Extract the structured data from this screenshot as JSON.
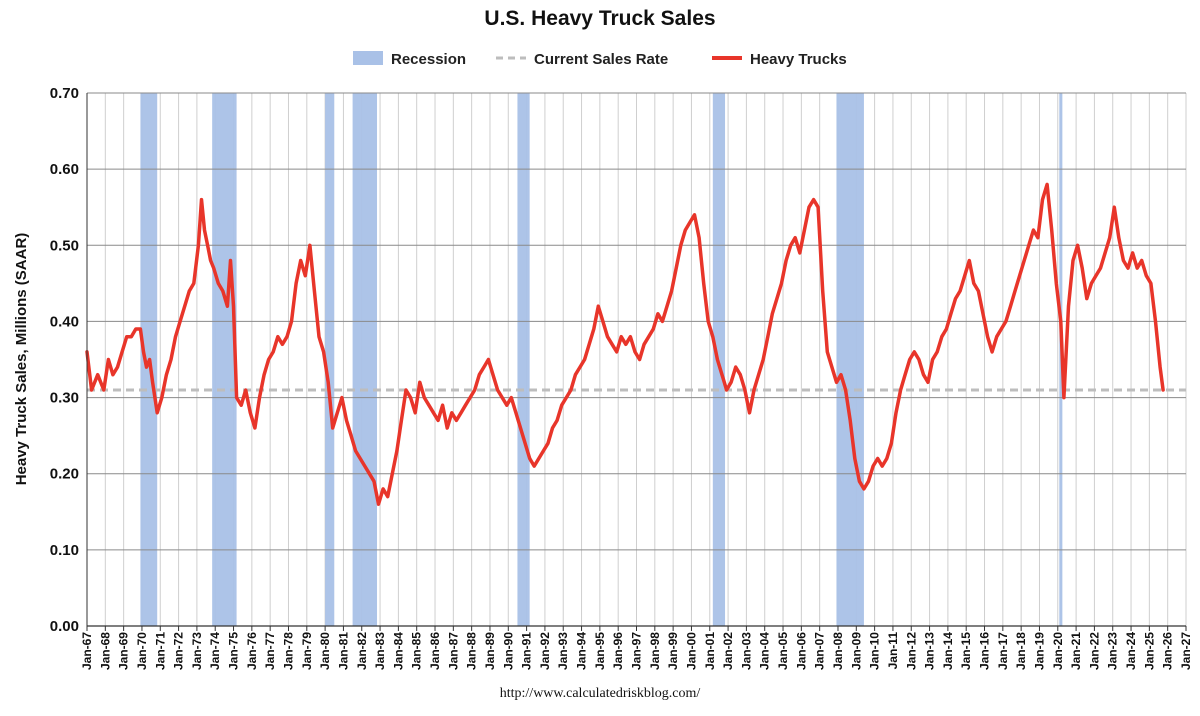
{
  "chart_data": {
    "type": "line",
    "title": "U.S. Heavy Truck Sales",
    "ylabel": "Heavy Truck Sales, Millions (SAAR)",
    "xlabel": "",
    "source": "http://www.calculatedriskblog.com/",
    "ylim": [
      0,
      0.7
    ],
    "xlim": [
      "1967-01",
      "2027-01"
    ],
    "yticks": [
      "0.00",
      "0.10",
      "0.20",
      "0.30",
      "0.40",
      "0.50",
      "0.60",
      "0.70"
    ],
    "xticks": [
      "Jan-67",
      "Jan-68",
      "Jan-69",
      "Jan-70",
      "Jan-71",
      "Jan-72",
      "Jan-73",
      "Jan-74",
      "Jan-75",
      "Jan-76",
      "Jan-77",
      "Jan-78",
      "Jan-79",
      "Jan-80",
      "Jan-81",
      "Jan-82",
      "Jan-83",
      "Jan-84",
      "Jan-85",
      "Jan-86",
      "Jan-87",
      "Jan-88",
      "Jan-89",
      "Jan-90",
      "Jan-91",
      "Jan-92",
      "Jan-93",
      "Jan-94",
      "Jan-95",
      "Jan-96",
      "Jan-97",
      "Jan-98",
      "Jan-99",
      "Jan-00",
      "Jan-01",
      "Jan-02",
      "Jan-03",
      "Jan-04",
      "Jan-05",
      "Jan-06",
      "Jan-07",
      "Jan-08",
      "Jan-09",
      "Jan-10",
      "Jan-11",
      "Jan-12",
      "Jan-13",
      "Jan-14",
      "Jan-15",
      "Jan-16",
      "Jan-17",
      "Jan-18",
      "Jan-19",
      "Jan-20",
      "Jan-21",
      "Jan-22",
      "Jan-23",
      "Jan-24",
      "Jan-25",
      "Jan-26",
      "Jan-27"
    ],
    "grid": true,
    "legend_position": "top-center",
    "legend": [
      {
        "label": "Recession",
        "kind": "box",
        "color": "#a9c1e7"
      },
      {
        "label": "Current Sales Rate",
        "kind": "dashed",
        "color": "#bdbdbd"
      },
      {
        "label": "Heavy Trucks",
        "kind": "line",
        "color": "#e8352a"
      }
    ],
    "recessions": [
      [
        "1969-12",
        "1970-11"
      ],
      [
        "1973-11",
        "1975-03"
      ],
      [
        "1980-01",
        "1980-07"
      ],
      [
        "1981-07",
        "1982-11"
      ],
      [
        "1990-07",
        "1991-03"
      ],
      [
        "2001-03",
        "2001-11"
      ],
      [
        "2007-12",
        "2009-06"
      ],
      [
        "2020-02",
        "2020-04"
      ]
    ],
    "current_rate": 0.31,
    "series": [
      {
        "name": "Heavy Trucks",
        "color": "#e8352a",
        "points": [
          [
            "1967-01",
            0.36
          ],
          [
            "1967-04",
            0.31
          ],
          [
            "1967-08",
            0.33
          ],
          [
            "1967-12",
            0.31
          ],
          [
            "1968-03",
            0.35
          ],
          [
            "1968-06",
            0.33
          ],
          [
            "1968-09",
            0.34
          ],
          [
            "1968-12",
            0.36
          ],
          [
            "1969-03",
            0.38
          ],
          [
            "1969-06",
            0.38
          ],
          [
            "1969-09",
            0.39
          ],
          [
            "1969-12",
            0.39
          ],
          [
            "1970-02",
            0.36
          ],
          [
            "1970-04",
            0.34
          ],
          [
            "1970-06",
            0.35
          ],
          [
            "1970-08",
            0.32
          ],
          [
            "1970-11",
            0.28
          ],
          [
            "1971-02",
            0.3
          ],
          [
            "1971-05",
            0.33
          ],
          [
            "1971-08",
            0.35
          ],
          [
            "1971-11",
            0.38
          ],
          [
            "1972-02",
            0.4
          ],
          [
            "1972-05",
            0.42
          ],
          [
            "1972-08",
            0.44
          ],
          [
            "1972-11",
            0.45
          ],
          [
            "1973-02",
            0.5
          ],
          [
            "1973-04",
            0.56
          ],
          [
            "1973-06",
            0.52
          ],
          [
            "1973-08",
            0.5
          ],
          [
            "1973-10",
            0.48
          ],
          [
            "1973-12",
            0.47
          ],
          [
            "1974-03",
            0.45
          ],
          [
            "1974-06",
            0.44
          ],
          [
            "1974-09",
            0.42
          ],
          [
            "1974-11",
            0.48
          ],
          [
            "1975-01",
            0.42
          ],
          [
            "1975-03",
            0.3
          ],
          [
            "1975-06",
            0.29
          ],
          [
            "1975-09",
            0.31
          ],
          [
            "1975-12",
            0.28
          ],
          [
            "1976-03",
            0.26
          ],
          [
            "1976-06",
            0.3
          ],
          [
            "1976-09",
            0.33
          ],
          [
            "1976-12",
            0.35
          ],
          [
            "1977-03",
            0.36
          ],
          [
            "1977-06",
            0.38
          ],
          [
            "1977-09",
            0.37
          ],
          [
            "1977-12",
            0.38
          ],
          [
            "1978-03",
            0.4
          ],
          [
            "1978-06",
            0.45
          ],
          [
            "1978-09",
            0.48
          ],
          [
            "1978-12",
            0.46
          ],
          [
            "1979-03",
            0.5
          ],
          [
            "1979-06",
            0.44
          ],
          [
            "1979-09",
            0.38
          ],
          [
            "1979-12",
            0.36
          ],
          [
            "1980-03",
            0.32
          ],
          [
            "1980-06",
            0.26
          ],
          [
            "1980-09",
            0.28
          ],
          [
            "1980-12",
            0.3
          ],
          [
            "1981-03",
            0.27
          ],
          [
            "1981-06",
            0.25
          ],
          [
            "1981-09",
            0.23
          ],
          [
            "1981-12",
            0.22
          ],
          [
            "1982-03",
            0.21
          ],
          [
            "1982-06",
            0.2
          ],
          [
            "1982-09",
            0.19
          ],
          [
            "1982-12",
            0.16
          ],
          [
            "1983-03",
            0.18
          ],
          [
            "1983-06",
            0.17
          ],
          [
            "1983-09",
            0.2
          ],
          [
            "1983-12",
            0.23
          ],
          [
            "1984-03",
            0.27
          ],
          [
            "1984-06",
            0.31
          ],
          [
            "1984-09",
            0.3
          ],
          [
            "1984-12",
            0.28
          ],
          [
            "1985-03",
            0.32
          ],
          [
            "1985-06",
            0.3
          ],
          [
            "1985-09",
            0.29
          ],
          [
            "1985-12",
            0.28
          ],
          [
            "1986-03",
            0.27
          ],
          [
            "1986-06",
            0.29
          ],
          [
            "1986-09",
            0.26
          ],
          [
            "1986-12",
            0.28
          ],
          [
            "1987-03",
            0.27
          ],
          [
            "1987-06",
            0.28
          ],
          [
            "1987-09",
            0.29
          ],
          [
            "1987-12",
            0.3
          ],
          [
            "1988-03",
            0.31
          ],
          [
            "1988-06",
            0.33
          ],
          [
            "1988-09",
            0.34
          ],
          [
            "1988-12",
            0.35
          ],
          [
            "1989-03",
            0.33
          ],
          [
            "1989-06",
            0.31
          ],
          [
            "1989-09",
            0.3
          ],
          [
            "1989-12",
            0.29
          ],
          [
            "1990-03",
            0.3
          ],
          [
            "1990-06",
            0.28
          ],
          [
            "1990-09",
            0.26
          ],
          [
            "1990-12",
            0.24
          ],
          [
            "1991-03",
            0.22
          ],
          [
            "1991-06",
            0.21
          ],
          [
            "1991-09",
            0.22
          ],
          [
            "1991-12",
            0.23
          ],
          [
            "1992-03",
            0.24
          ],
          [
            "1992-06",
            0.26
          ],
          [
            "1992-09",
            0.27
          ],
          [
            "1992-12",
            0.29
          ],
          [
            "1993-03",
            0.3
          ],
          [
            "1993-06",
            0.31
          ],
          [
            "1993-09",
            0.33
          ],
          [
            "1993-12",
            0.34
          ],
          [
            "1994-03",
            0.35
          ],
          [
            "1994-06",
            0.37
          ],
          [
            "1994-09",
            0.39
          ],
          [
            "1994-12",
            0.42
          ],
          [
            "1995-03",
            0.4
          ],
          [
            "1995-06",
            0.38
          ],
          [
            "1995-09",
            0.37
          ],
          [
            "1995-12",
            0.36
          ],
          [
            "1996-03",
            0.38
          ],
          [
            "1996-06",
            0.37
          ],
          [
            "1996-09",
            0.38
          ],
          [
            "1996-12",
            0.36
          ],
          [
            "1997-03",
            0.35
          ],
          [
            "1997-06",
            0.37
          ],
          [
            "1997-09",
            0.38
          ],
          [
            "1997-12",
            0.39
          ],
          [
            "1998-03",
            0.41
          ],
          [
            "1998-06",
            0.4
          ],
          [
            "1998-09",
            0.42
          ],
          [
            "1998-12",
            0.44
          ],
          [
            "1999-03",
            0.47
          ],
          [
            "1999-06",
            0.5
          ],
          [
            "1999-09",
            0.52
          ],
          [
            "1999-12",
            0.53
          ],
          [
            "2000-03",
            0.54
          ],
          [
            "2000-06",
            0.51
          ],
          [
            "2000-09",
            0.45
          ],
          [
            "2000-12",
            0.4
          ],
          [
            "2001-03",
            0.38
          ],
          [
            "2001-06",
            0.35
          ],
          [
            "2001-09",
            0.33
          ],
          [
            "2001-12",
            0.31
          ],
          [
            "2002-03",
            0.32
          ],
          [
            "2002-06",
            0.34
          ],
          [
            "2002-09",
            0.33
          ],
          [
            "2002-12",
            0.31
          ],
          [
            "2003-03",
            0.28
          ],
          [
            "2003-06",
            0.31
          ],
          [
            "2003-09",
            0.33
          ],
          [
            "2003-12",
            0.35
          ],
          [
            "2004-03",
            0.38
          ],
          [
            "2004-06",
            0.41
          ],
          [
            "2004-09",
            0.43
          ],
          [
            "2004-12",
            0.45
          ],
          [
            "2005-03",
            0.48
          ],
          [
            "2005-06",
            0.5
          ],
          [
            "2005-09",
            0.51
          ],
          [
            "2005-12",
            0.49
          ],
          [
            "2006-03",
            0.52
          ],
          [
            "2006-06",
            0.55
          ],
          [
            "2006-09",
            0.56
          ],
          [
            "2006-12",
            0.55
          ],
          [
            "2007-03",
            0.44
          ],
          [
            "2007-06",
            0.36
          ],
          [
            "2007-09",
            0.34
          ],
          [
            "2007-12",
            0.32
          ],
          [
            "2008-03",
            0.33
          ],
          [
            "2008-06",
            0.31
          ],
          [
            "2008-09",
            0.27
          ],
          [
            "2008-12",
            0.22
          ],
          [
            "2009-03",
            0.19
          ],
          [
            "2009-06",
            0.18
          ],
          [
            "2009-09",
            0.19
          ],
          [
            "2009-12",
            0.21
          ],
          [
            "2010-03",
            0.22
          ],
          [
            "2010-06",
            0.21
          ],
          [
            "2010-09",
            0.22
          ],
          [
            "2010-12",
            0.24
          ],
          [
            "2011-03",
            0.28
          ],
          [
            "2011-06",
            0.31
          ],
          [
            "2011-09",
            0.33
          ],
          [
            "2011-12",
            0.35
          ],
          [
            "2012-03",
            0.36
          ],
          [
            "2012-06",
            0.35
          ],
          [
            "2012-09",
            0.33
          ],
          [
            "2012-12",
            0.32
          ],
          [
            "2013-03",
            0.35
          ],
          [
            "2013-06",
            0.36
          ],
          [
            "2013-09",
            0.38
          ],
          [
            "2013-12",
            0.39
          ],
          [
            "2014-03",
            0.41
          ],
          [
            "2014-06",
            0.43
          ],
          [
            "2014-09",
            0.44
          ],
          [
            "2014-12",
            0.46
          ],
          [
            "2015-03",
            0.48
          ],
          [
            "2015-06",
            0.45
          ],
          [
            "2015-09",
            0.44
          ],
          [
            "2015-12",
            0.41
          ],
          [
            "2016-03",
            0.38
          ],
          [
            "2016-06",
            0.36
          ],
          [
            "2016-09",
            0.38
          ],
          [
            "2016-12",
            0.39
          ],
          [
            "2017-03",
            0.4
          ],
          [
            "2017-06",
            0.42
          ],
          [
            "2017-09",
            0.44
          ],
          [
            "2017-12",
            0.46
          ],
          [
            "2018-03",
            0.48
          ],
          [
            "2018-06",
            0.5
          ],
          [
            "2018-09",
            0.52
          ],
          [
            "2018-12",
            0.51
          ],
          [
            "2019-03",
            0.56
          ],
          [
            "2019-06",
            0.58
          ],
          [
            "2019-09",
            0.52
          ],
          [
            "2019-12",
            0.45
          ],
          [
            "2020-03",
            0.4
          ],
          [
            "2020-05",
            0.3
          ],
          [
            "2020-08",
            0.42
          ],
          [
            "2020-11",
            0.48
          ],
          [
            "2021-02",
            0.5
          ],
          [
            "2021-05",
            0.47
          ],
          [
            "2021-08",
            0.43
          ],
          [
            "2021-11",
            0.45
          ],
          [
            "2022-02",
            0.46
          ],
          [
            "2022-05",
            0.47
          ],
          [
            "2022-08",
            0.49
          ],
          [
            "2022-11",
            0.51
          ],
          [
            "2023-02",
            0.55
          ],
          [
            "2023-05",
            0.51
          ],
          [
            "2023-08",
            0.48
          ],
          [
            "2023-11",
            0.47
          ],
          [
            "2024-02",
            0.49
          ],
          [
            "2024-05",
            0.47
          ],
          [
            "2024-08",
            0.48
          ],
          [
            "2024-11",
            0.46
          ],
          [
            "2025-02",
            0.45
          ],
          [
            "2025-05",
            0.4
          ],
          [
            "2025-08",
            0.34
          ],
          [
            "2025-10",
            0.31
          ]
        ]
      }
    ]
  }
}
